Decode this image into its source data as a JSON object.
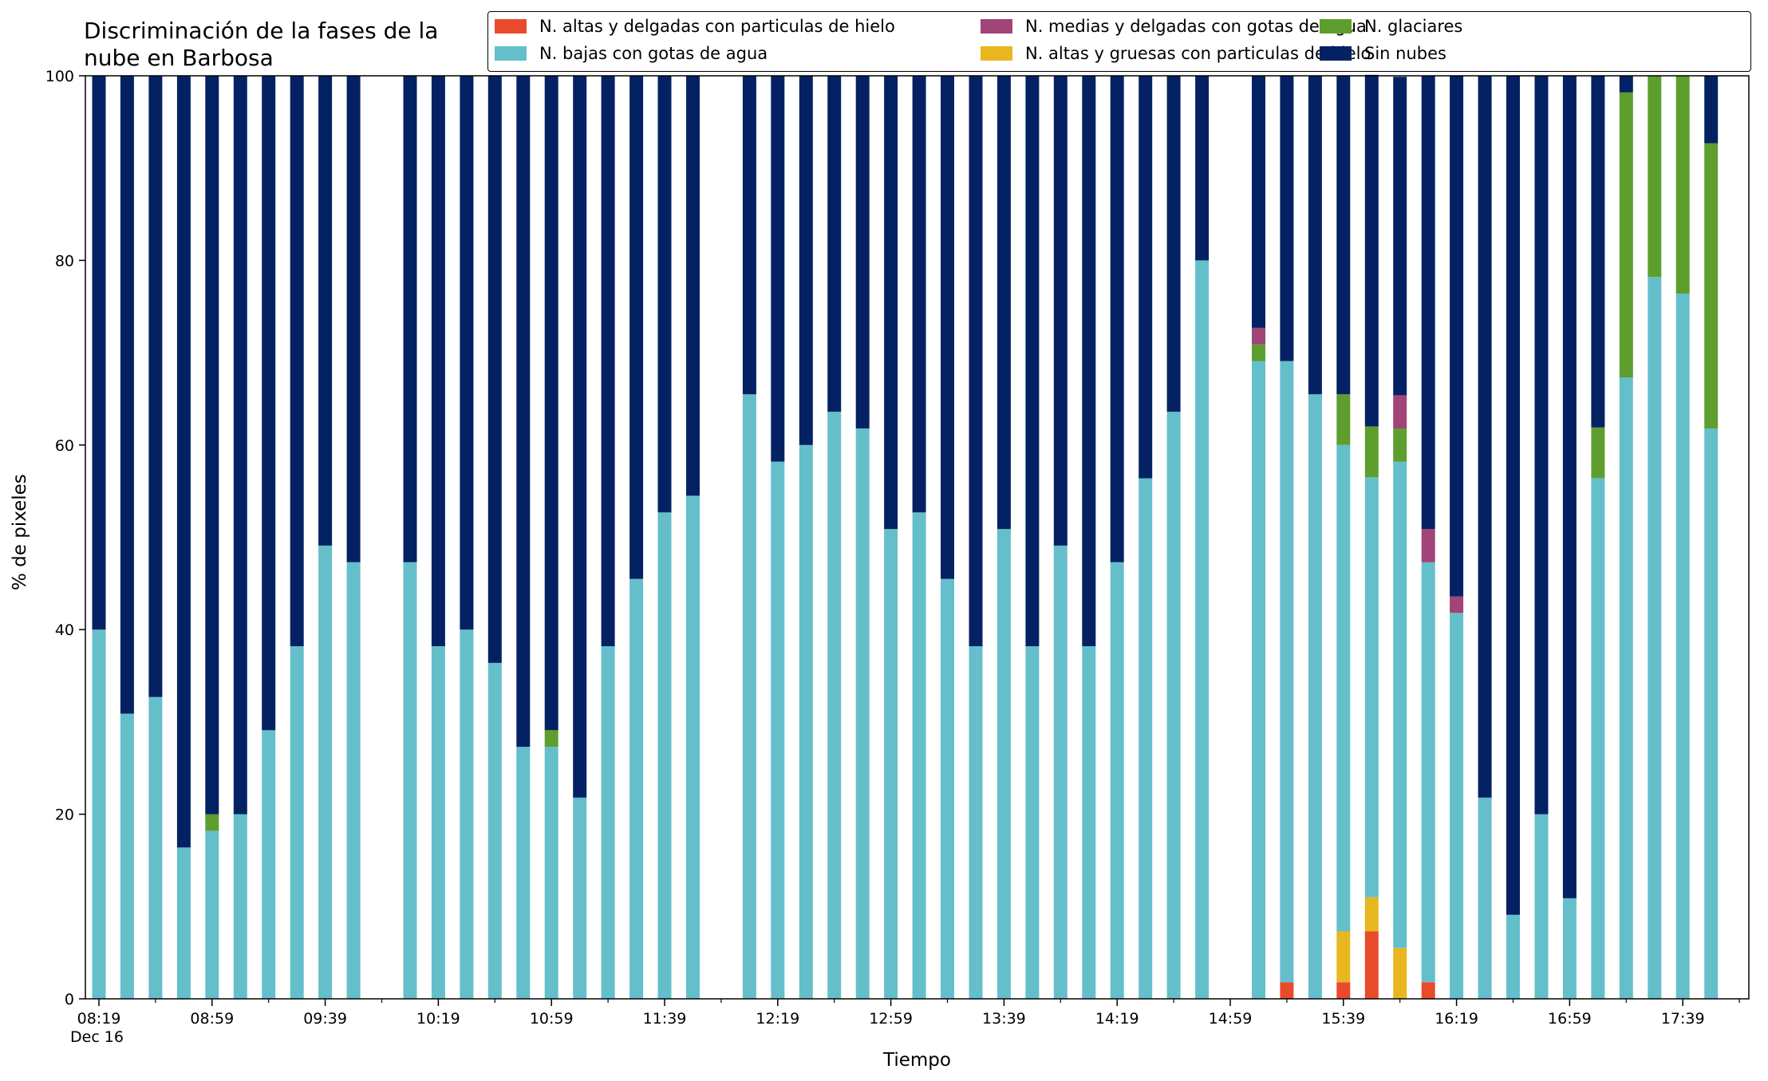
{
  "chart_data": {
    "type": "bar",
    "stacked": true,
    "title": "Discriminación de la fases de la\nnube en Barbosa",
    "xlabel": "Tiempo",
    "x_sublabel": "Dec 16",
    "ylabel": "% de pixeles",
    "ylim": [
      0,
      100
    ],
    "yticks": [
      0,
      20,
      40,
      60,
      80,
      100
    ],
    "xtick_labels": [
      "08:19",
      "08:59",
      "09:39",
      "10:19",
      "10:59",
      "11:39",
      "12:19",
      "12:59",
      "13:39",
      "14:19",
      "14:59",
      "15:39",
      "16:19",
      "16:59",
      "17:39"
    ],
    "xtick_label_slots": [
      0,
      4,
      8,
      12,
      16,
      20,
      24,
      28,
      32,
      36,
      40,
      44,
      48,
      52,
      56
    ],
    "minor_tick_slots": [
      2,
      6,
      10,
      14,
      18,
      22,
      26,
      30,
      34,
      38,
      42,
      46,
      50,
      54,
      58
    ],
    "grid": false,
    "legend_position": "top-right",
    "slots": [
      0,
      1,
      2,
      3,
      4,
      5,
      6,
      7,
      8,
      9,
      11,
      12,
      13,
      14,
      15,
      16,
      17,
      18,
      19,
      20,
      21,
      23,
      24,
      25,
      26,
      27,
      28,
      29,
      30,
      31,
      32,
      33,
      34,
      35,
      36,
      37,
      38,
      39,
      41,
      42,
      43,
      44,
      45,
      46,
      47,
      48,
      49,
      50,
      51,
      52,
      53,
      54,
      55,
      56,
      57
    ],
    "series": [
      {
        "name": "N. altas y delgadas con particulas de hielo",
        "color": "#ea4a2c",
        "values": [
          0,
          0,
          0,
          0,
          0,
          0,
          0,
          0,
          0,
          0,
          0,
          0,
          0,
          0,
          0,
          0,
          0,
          0,
          0,
          0,
          0,
          0,
          0,
          0,
          0,
          0,
          0,
          0,
          0,
          0,
          0,
          0,
          0,
          0,
          0,
          0,
          0,
          0,
          0,
          1.8,
          0,
          1.8,
          7.3,
          0,
          1.8,
          0,
          0,
          0,
          0,
          0,
          0,
          0,
          0,
          0,
          0
        ]
      },
      {
        "name": "N. altas y gruesas con particulas de hielo",
        "color": "#e8b720",
        "values": [
          0,
          0,
          0,
          0,
          0,
          0,
          0,
          0,
          0,
          0,
          0,
          0,
          0,
          0,
          0,
          0,
          0,
          0,
          0,
          0,
          0,
          0,
          0,
          0,
          0,
          0,
          0,
          0,
          0,
          0,
          0,
          0,
          0,
          0,
          0,
          0,
          0,
          0,
          0,
          0,
          0,
          5.5,
          3.7,
          5.5,
          0,
          0,
          0,
          0,
          0,
          0,
          0,
          0,
          0,
          0,
          0
        ]
      },
      {
        "name": "N. bajas con gotas de agua",
        "color": "#65bfcb",
        "values": [
          40,
          30.9,
          32.7,
          16.4,
          18.2,
          20,
          29.1,
          38.2,
          49.1,
          47.3,
          47.3,
          38.2,
          40,
          36.4,
          27.3,
          27.3,
          21.8,
          38.2,
          45.5,
          52.7,
          54.5,
          65.5,
          58.2,
          60,
          63.6,
          61.8,
          50.9,
          52.7,
          45.5,
          38.2,
          50.9,
          38.2,
          49.1,
          38.2,
          47.3,
          56.4,
          63.6,
          80,
          69.1,
          67.3,
          65.5,
          52.7,
          45.5,
          52.7,
          45.5,
          41.8,
          21.8,
          9.1,
          20,
          10.9,
          56.4,
          67.3,
          78.2,
          76.4,
          61.8
        ]
      },
      {
        "name": "N. glaciares",
        "color": "#5e9e2e",
        "values": [
          0,
          0,
          0,
          0,
          1.8,
          0,
          0,
          0,
          0,
          0,
          0,
          0,
          0,
          0,
          0,
          1.8,
          0,
          0,
          0,
          0,
          0,
          0,
          0,
          0,
          0,
          0,
          0,
          0,
          0,
          0,
          0,
          0,
          0,
          0,
          0,
          0,
          0,
          0,
          1.8,
          0,
          0,
          5.5,
          5.5,
          3.6,
          0,
          0,
          0,
          0,
          0,
          0,
          5.5,
          30.9,
          21.8,
          23.6,
          30.9
        ]
      },
      {
        "name": "N. medias y delgadas con gotas de agua",
        "color": "#a14478",
        "values": [
          0,
          0,
          0,
          0,
          0,
          0,
          0,
          0,
          0,
          0,
          0,
          0,
          0,
          0,
          0,
          0,
          0,
          0,
          0,
          0,
          0,
          0,
          0,
          0,
          0,
          0,
          0,
          0,
          0,
          0,
          0,
          0,
          0,
          0,
          0,
          0,
          0,
          0,
          1.8,
          0,
          0,
          0,
          0,
          3.6,
          3.6,
          1.8,
          0,
          0,
          0,
          0,
          0,
          0,
          0,
          0,
          0
        ]
      },
      {
        "name": "Sin nubes",
        "color": "#042263",
        "values": [
          60,
          69.1,
          67.3,
          83.6,
          80,
          80,
          70.9,
          61.8,
          50.9,
          52.7,
          52.7,
          61.8,
          60,
          63.6,
          72.7,
          70.9,
          78.2,
          61.8,
          54.5,
          47.3,
          45.5,
          34.5,
          41.8,
          40,
          36.4,
          38.2,
          49.1,
          47.3,
          54.5,
          61.8,
          49.1,
          61.8,
          50.9,
          61.8,
          52.7,
          43.6,
          36.4,
          20,
          27.3,
          30.9,
          34.5,
          34.5,
          38.1,
          34.5,
          49.1,
          56.4,
          78.2,
          90.9,
          80,
          89.1,
          38.1,
          1.8,
          0,
          0,
          7.3
        ]
      }
    ]
  }
}
